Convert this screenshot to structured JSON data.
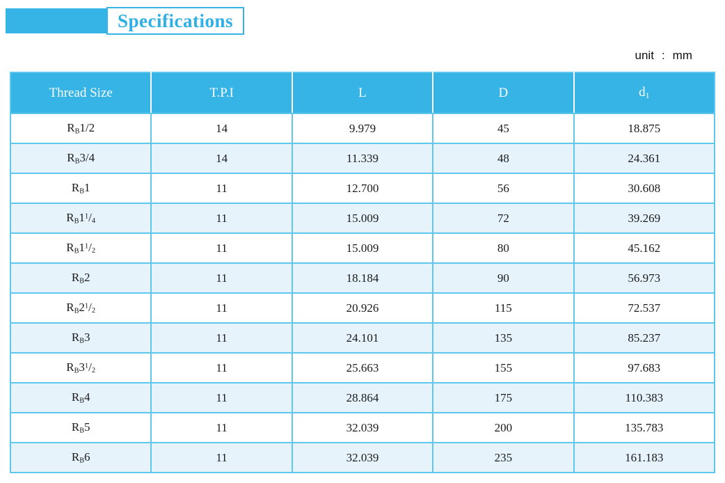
{
  "header": {
    "title": "Specifications",
    "unit": {
      "label": "unit",
      "separator": ":",
      "value": "mm"
    }
  },
  "colors": {
    "accent": "#35b4e5",
    "row_alt": "#e6f3fb",
    "grid": "#5fc7ee",
    "title_text": "#2fb0e5",
    "header_text": "#fdfdfd",
    "body_text": "#1a1a1a"
  },
  "table": {
    "columns": [
      {
        "label": "Thread Size",
        "sub": ""
      },
      {
        "label": "T.P.I",
        "sub": ""
      },
      {
        "label": "L",
        "sub": ""
      },
      {
        "label": "D",
        "sub": ""
      },
      {
        "label": "d",
        "sub": "1"
      }
    ],
    "rows": [
      {
        "thread": {
          "base": "R",
          "base_sub": "B",
          "size": "1/2",
          "frac_num": "",
          "frac_den": ""
        },
        "tpi": "14",
        "l": "9.979",
        "d": "45",
        "d1": "18.875"
      },
      {
        "thread": {
          "base": "R",
          "base_sub": "B",
          "size": "3/4",
          "frac_num": "",
          "frac_den": ""
        },
        "tpi": "14",
        "l": "11.339",
        "d": "48",
        "d1": "24.361"
      },
      {
        "thread": {
          "base": "R",
          "base_sub": "B",
          "size": "1",
          "frac_num": "",
          "frac_den": ""
        },
        "tpi": "11",
        "l": "12.700",
        "d": "56",
        "d1": "30.608"
      },
      {
        "thread": {
          "base": "R",
          "base_sub": "B",
          "size": "1",
          "frac_num": "1",
          "frac_den": "4"
        },
        "tpi": "11",
        "l": "15.009",
        "d": "72",
        "d1": "39.269"
      },
      {
        "thread": {
          "base": "R",
          "base_sub": "B",
          "size": "1",
          "frac_num": "1",
          "frac_den": "2"
        },
        "tpi": "11",
        "l": "15.009",
        "d": "80",
        "d1": "45.162"
      },
      {
        "thread": {
          "base": "R",
          "base_sub": "B",
          "size": "2",
          "frac_num": "",
          "frac_den": ""
        },
        "tpi": "11",
        "l": "18.184",
        "d": "90",
        "d1": "56.973"
      },
      {
        "thread": {
          "base": "R",
          "base_sub": "B",
          "size": "2",
          "frac_num": "1",
          "frac_den": "2"
        },
        "tpi": "11",
        "l": "20.926",
        "d": "115",
        "d1": "72.537"
      },
      {
        "thread": {
          "base": "R",
          "base_sub": "B",
          "size": "3",
          "frac_num": "",
          "frac_den": ""
        },
        "tpi": "11",
        "l": "24.101",
        "d": "135",
        "d1": "85.237"
      },
      {
        "thread": {
          "base": "R",
          "base_sub": "B",
          "size": "3",
          "frac_num": "1",
          "frac_den": "2"
        },
        "tpi": "11",
        "l": "25.663",
        "d": "155",
        "d1": "97.683"
      },
      {
        "thread": {
          "base": "R",
          "base_sub": "B",
          "size": "4",
          "frac_num": "",
          "frac_den": ""
        },
        "tpi": "11",
        "l": "28.864",
        "d": "175",
        "d1": "110.383"
      },
      {
        "thread": {
          "base": "R",
          "base_sub": "B",
          "size": "5",
          "frac_num": "",
          "frac_den": ""
        },
        "tpi": "11",
        "l": "32.039",
        "d": "200",
        "d1": "135.783"
      },
      {
        "thread": {
          "base": "R",
          "base_sub": "B",
          "size": "6",
          "frac_num": "",
          "frac_den": ""
        },
        "tpi": "11",
        "l": "32.039",
        "d": "235",
        "d1": "161.183"
      }
    ]
  }
}
